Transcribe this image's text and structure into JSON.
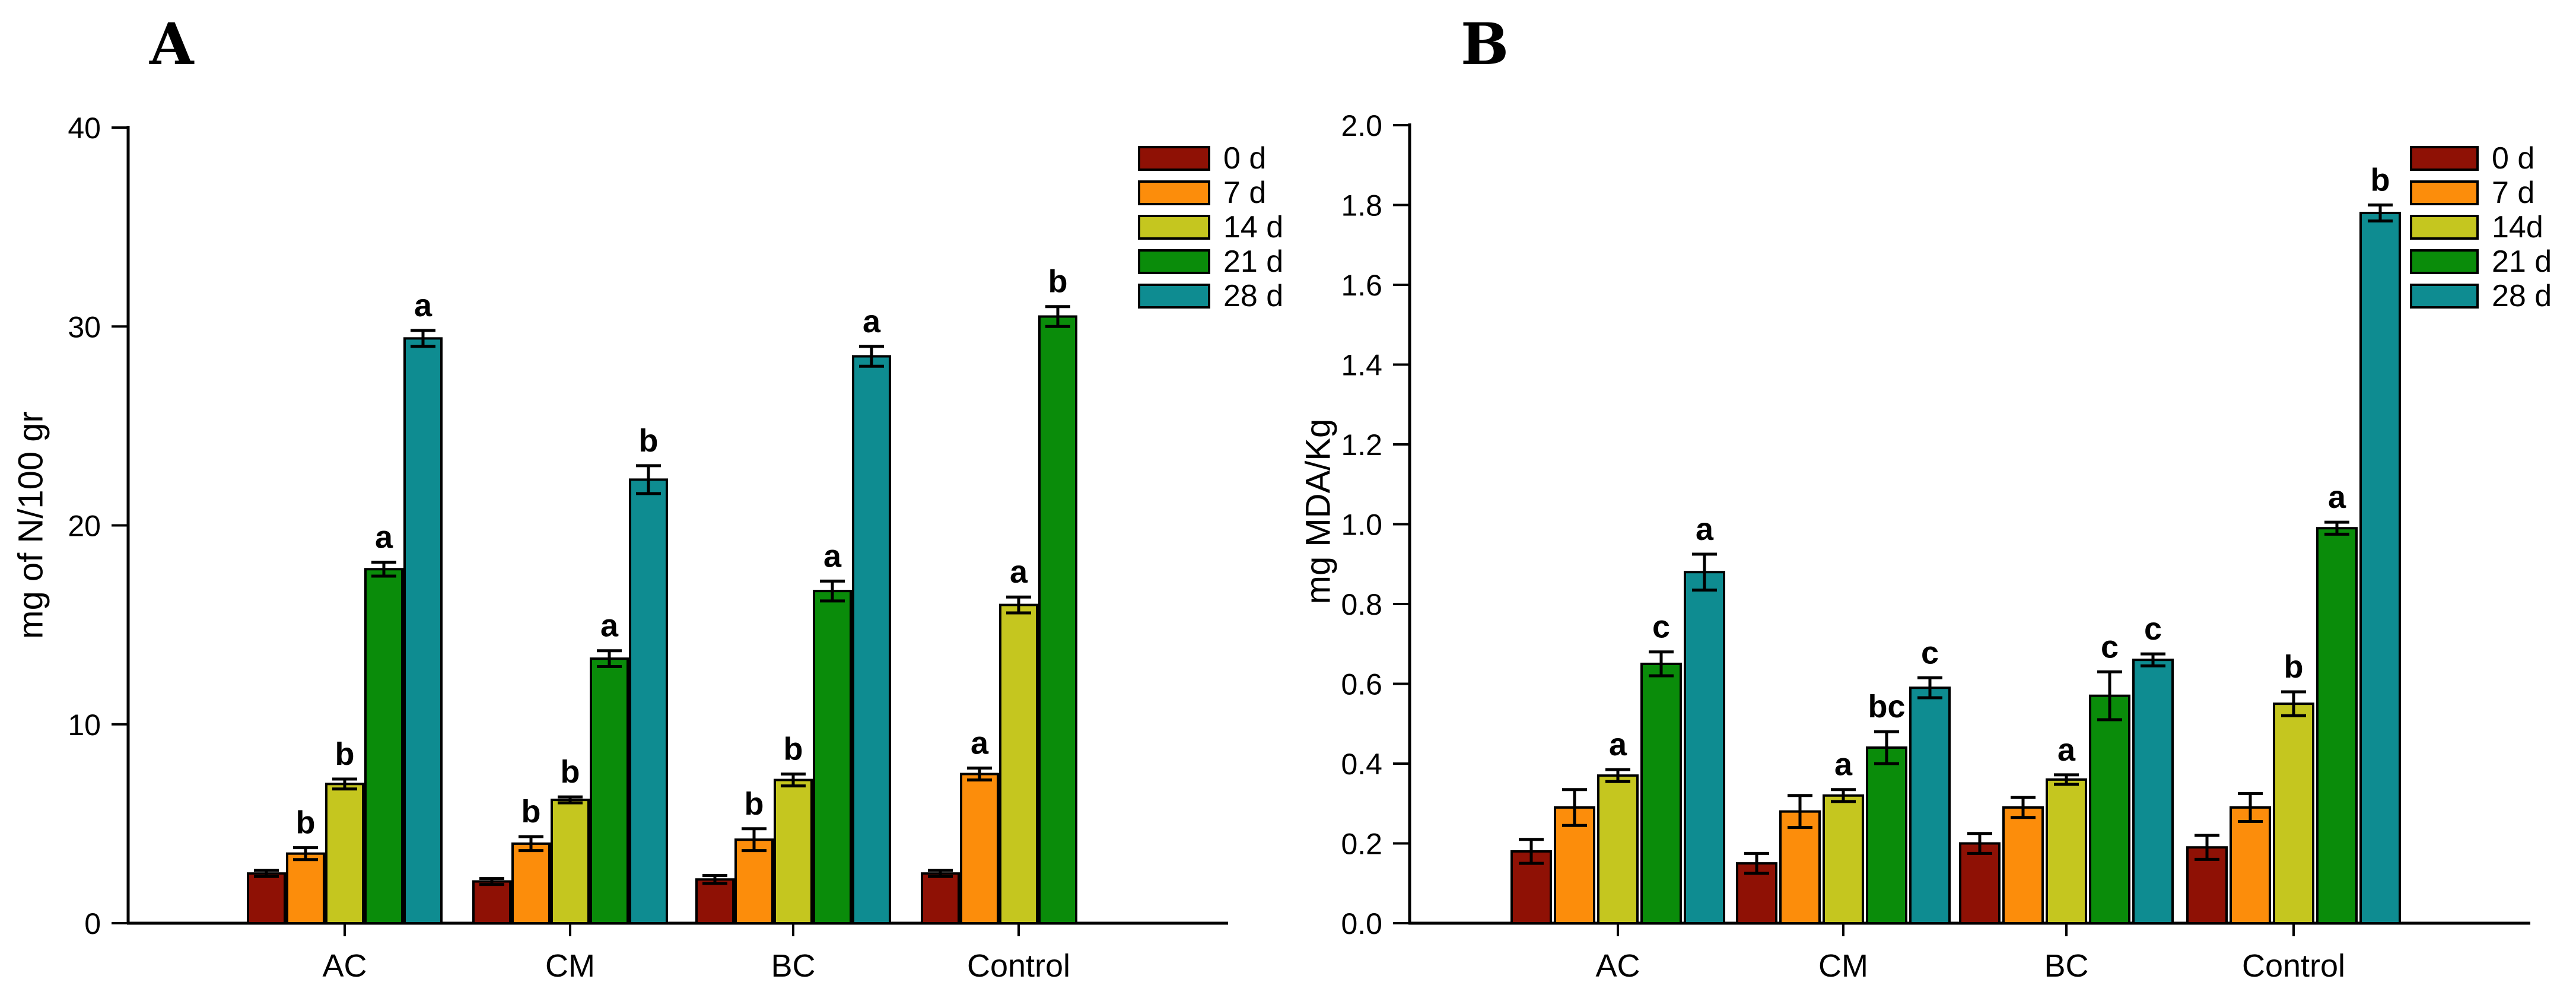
{
  "figure": {
    "background": "#ffffff",
    "panels": [
      {
        "label": "A",
        "y_title": "mg of N/100 gr"
      },
      {
        "label": "B",
        "y_title": "mg MDA/Kg"
      }
    ]
  },
  "chart_data": [
    {
      "type": "bar",
      "panel": "A",
      "title": "",
      "xlabel": "",
      "ylabel": "mg of N/100 gr",
      "ylim": [
        0,
        40
      ],
      "ytick_values": [
        0,
        10,
        20,
        30,
        40
      ],
      "ytick_labels": [
        "0",
        "10",
        "20",
        "30",
        "40"
      ],
      "categories": [
        "AC",
        "CM",
        "BC",
        "Control"
      ],
      "grid": false,
      "legend_position": "top-right",
      "series": [
        {
          "name": "0 d",
          "color": "#8f1105",
          "values": [
            2.5,
            2.1,
            2.2,
            2.5
          ],
          "errors": [
            0.15,
            0.15,
            0.2,
            0.15
          ],
          "letters": [
            null,
            null,
            null,
            null
          ]
        },
        {
          "name": "7 d",
          "color": "#fc8d0b",
          "values": [
            3.5,
            4.0,
            4.2,
            7.5
          ],
          "errors": [
            0.3,
            0.35,
            0.55,
            0.3
          ],
          "letters": [
            "b",
            "b",
            "b",
            "a"
          ]
        },
        {
          "name": "14 d",
          "color": "#c5c61f",
          "values": [
            7.0,
            6.2,
            7.2,
            16.0
          ],
          "errors": [
            0.25,
            0.15,
            0.3,
            0.4
          ],
          "letters": [
            "b",
            "b",
            "b",
            "a"
          ]
        },
        {
          "name": "21 d",
          "color": "#0a8c0a",
          "values": [
            17.8,
            13.3,
            16.7,
            30.5
          ],
          "errors": [
            0.35,
            0.4,
            0.5,
            0.5
          ],
          "letters": [
            "a",
            "a",
            "a",
            "b"
          ]
        },
        {
          "name": "28 d",
          "color": "#0e8c91",
          "values": [
            29.4,
            22.3,
            28.5,
            null
          ],
          "errors": [
            0.4,
            0.7,
            0.5,
            null
          ],
          "letters": [
            "a",
            "b",
            "a",
            null
          ]
        }
      ]
    },
    {
      "type": "bar",
      "panel": "B",
      "title": "",
      "xlabel": "",
      "ylabel": "mg MDA/Kg",
      "ylim": [
        0,
        2.0
      ],
      "ytick_values": [
        0.0,
        0.2,
        0.4,
        0.6,
        0.8,
        1.0,
        1.2,
        1.4,
        1.6,
        1.8,
        2.0
      ],
      "ytick_labels": [
        "0.0",
        "0.2",
        "0.4",
        "0.6",
        "0.8",
        "1.0",
        "1.2",
        "1.4",
        "1.6",
        "1.8",
        "2.0"
      ],
      "categories": [
        "AC",
        "CM",
        "BC",
        "Control"
      ],
      "grid": false,
      "legend_position": "top-right",
      "series": [
        {
          "name": "0 d",
          "color": "#8f1105",
          "values": [
            0.18,
            0.15,
            0.2,
            0.19
          ],
          "errors": [
            0.03,
            0.025,
            0.025,
            0.03
          ],
          "letters": [
            null,
            null,
            null,
            null
          ]
        },
        {
          "name": "7 d",
          "color": "#fc8d0b",
          "values": [
            0.29,
            0.28,
            0.29,
            0.29
          ],
          "errors": [
            0.045,
            0.04,
            0.025,
            0.035
          ],
          "letters": [
            null,
            null,
            null,
            null
          ]
        },
        {
          "name": "14d",
          "color": "#c5c61f",
          "values": [
            0.37,
            0.32,
            0.36,
            0.55
          ],
          "errors": [
            0.015,
            0.015,
            0.012,
            0.03
          ],
          "letters": [
            "a",
            "a",
            "a",
            "b"
          ]
        },
        {
          "name": "21 d",
          "color": "#0a8c0a",
          "values": [
            0.65,
            0.44,
            0.57,
            0.99
          ],
          "errors": [
            0.03,
            0.04,
            0.06,
            0.015
          ],
          "letters": [
            "c",
            "bc",
            "c",
            "a"
          ]
        },
        {
          "name": "28 d",
          "color": "#0e8c91",
          "values": [
            0.88,
            0.59,
            0.66,
            1.78
          ],
          "errors": [
            0.045,
            0.025,
            0.015,
            0.02
          ],
          "letters": [
            "a",
            "c",
            "c",
            "b"
          ]
        }
      ]
    }
  ]
}
